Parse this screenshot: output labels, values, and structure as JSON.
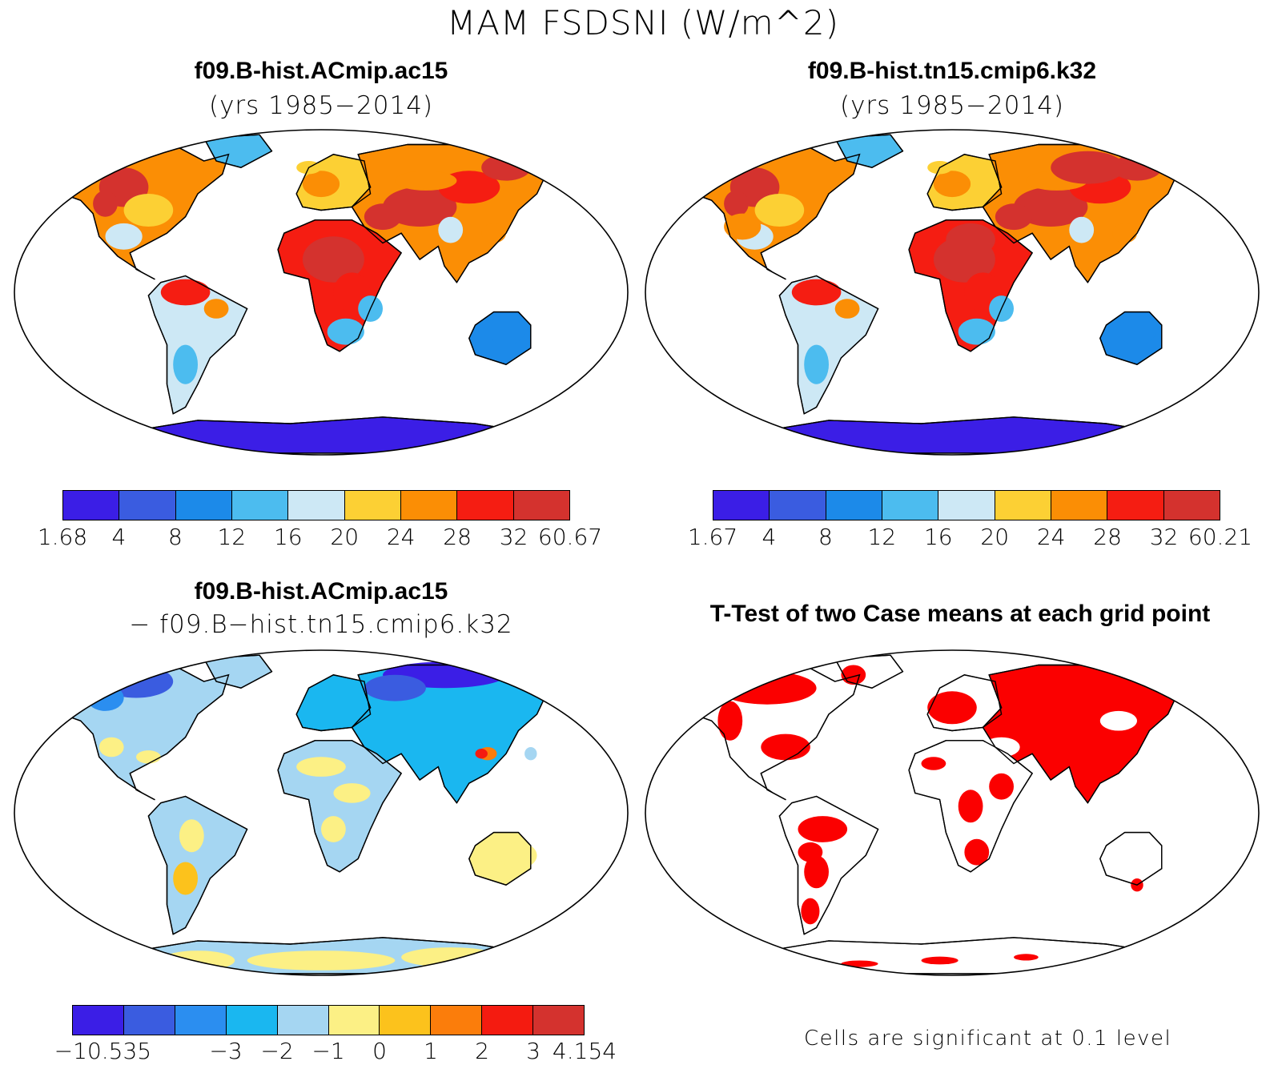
{
  "title": "MAM FSDSNI (W/m^2)",
  "panels": {
    "p1": {
      "title": "f09.B-hist.ACmip.ac15",
      "subtitle": "(yrs 1985−2014)"
    },
    "p2": {
      "title": "f09.B-hist.tn15.cmip6.k32",
      "subtitle": "(yrs 1985−2014)"
    },
    "p3": {
      "title": "f09.B-hist.ACmip.ac15",
      "subtitle": "− f09.B−hist.tn15.cmip6.k32"
    },
    "p4": {
      "title": "T-Test of two Case means at each grid point",
      "note": "Cells are significant at 0.1 level"
    }
  },
  "colorbars": {
    "cb1": {
      "colors": [
        "#3b1ee6",
        "#3a5ce0",
        "#1c8ae9",
        "#4cbcef",
        "#cde8f5",
        "#fcd034",
        "#fb8e05",
        "#f51d12",
        "#d4322e"
      ],
      "labels": [
        "1.68",
        "4",
        "8",
        "12",
        "16",
        "20",
        "24",
        "28",
        "32",
        "60.67"
      ]
    },
    "cb2": {
      "colors": [
        "#3b1ee6",
        "#3a5ce0",
        "#1c8ae9",
        "#4cbcef",
        "#cde8f5",
        "#fcd034",
        "#fb8e05",
        "#f51d12",
        "#d4322e"
      ],
      "labels": [
        "1.67",
        "4",
        "8",
        "12",
        "16",
        "20",
        "24",
        "28",
        "32",
        "60.21"
      ]
    },
    "cb3": {
      "colors": [
        "#3b1ee6",
        "#3a5ce0",
        "#2b8ef0",
        "#1ab7f0",
        "#a5d6f2",
        "#fcf085",
        "#fcc21c",
        "#fb7d0b",
        "#f41b10",
        "#d4322e"
      ],
      "labels": [
        "−10.535",
        "−3",
        "−2",
        "−1",
        "0",
        "1",
        "2",
        "3",
        "4.154"
      ]
    }
  },
  "map_colors": {
    "ocean": "#ffffff",
    "significant": "#fb0000",
    "border": "#000000"
  }
}
